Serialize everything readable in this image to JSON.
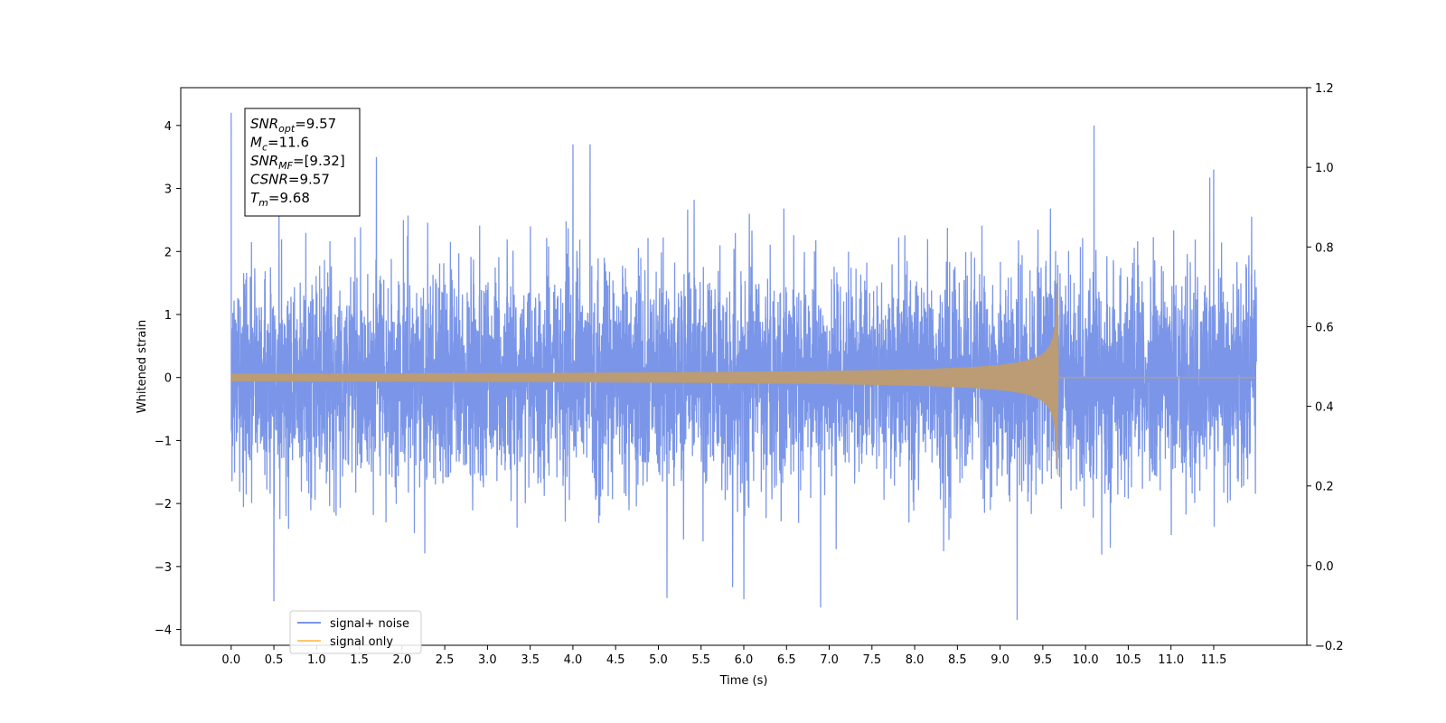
{
  "chart_data": {
    "type": "line",
    "xlabel": "Time (s)",
    "ylabel": "Whitened strain",
    "xlim": [
      -0.59,
      12.59
    ],
    "ylim": [
      -4.25,
      4.6
    ],
    "y2lim": [
      -0.2,
      1.2
    ],
    "grid": false,
    "legend_placement": "bottom-left",
    "x_ticks": [
      "0.0",
      "0.5",
      "1.0",
      "1.5",
      "2.0",
      "2.5",
      "3.0",
      "3.5",
      "4.0",
      "4.5",
      "5.0",
      "5.5",
      "6.0",
      "6.5",
      "7.0",
      "7.5",
      "8.0",
      "8.5",
      "9.0",
      "9.5",
      "10.0",
      "10.5",
      "11.0",
      "11.5"
    ],
    "y_ticks": [
      -4,
      -3,
      -2,
      -1,
      0,
      1,
      2,
      3,
      4
    ],
    "y2_ticks": [
      "−0.2",
      "0.0",
      "0.2",
      "0.4",
      "0.6",
      "0.8",
      "1.0",
      "1.2"
    ],
    "annotation": {
      "lines": [
        {
          "var": "SNR",
          "sub": "opt",
          "value": "=9.57"
        },
        {
          "var": "M",
          "sub": "c",
          "value": "=11.6"
        },
        {
          "var": "SNR",
          "sub": "MF",
          "value": "=[9.32]"
        },
        {
          "var": "CSNR",
          "sub": "",
          "value": "=9.57"
        },
        {
          "var": "T",
          "sub": "m",
          "value": "=9.68"
        }
      ]
    },
    "series": [
      {
        "name": "signal+ noise",
        "color": "#7b96e8",
        "x_range": [
          0.0,
          12.0
        ],
        "noise_sigma": 0.85,
        "peaks": [
          [
            0.0,
            4.2
          ],
          [
            0.5,
            -3.55
          ],
          [
            1.7,
            3.5
          ],
          [
            4.0,
            3.7
          ],
          [
            4.2,
            3.7
          ],
          [
            5.1,
            -3.5
          ],
          [
            6.9,
            -3.65
          ],
          [
            9.2,
            -3.85
          ],
          [
            10.1,
            4.0
          ],
          [
            11.5,
            3.3
          ]
        ]
      },
      {
        "name": "signal only",
        "color": "#ffc66e",
        "type": "chirp",
        "x_range": [
          0.0,
          12.0
        ],
        "merger_time": 9.68,
        "peak_amplitude": 1.55,
        "pre_merger_amplitude_at_2s": 0.06,
        "blended_color": "#bb9c74"
      }
    ]
  }
}
